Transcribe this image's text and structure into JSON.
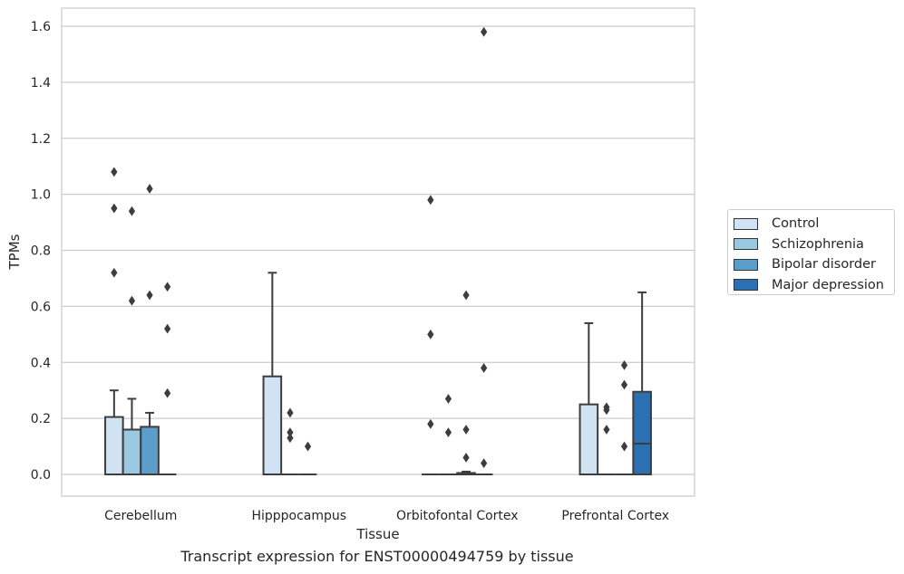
{
  "chart_data": {
    "type": "box",
    "xlabel": "Tissue",
    "ylabel": "TPMs",
    "caption": "Transcript expression for ENST00000494759 by tissue",
    "categories": [
      "Cerebellum",
      "Hipppocampus",
      "Orbitofontal Cortex",
      "Prefrontal Cortex"
    ],
    "ylim": [
      -0.08,
      1.66
    ],
    "yticks": [
      "0.0",
      "0.2",
      "0.4",
      "0.6",
      "0.8",
      "1.0",
      "1.2",
      "1.4",
      "1.6"
    ],
    "grid": "horizontal",
    "legend_position": "right",
    "series": [
      {
        "name": "Control",
        "color": "#d1e2f2",
        "boxes": [
          {
            "q1": 0,
            "median": 0,
            "q3": 0.205,
            "whisker_low": 0,
            "whisker_high": 0.3,
            "outliers": [
              1.08,
              0.95,
              0.72
            ]
          },
          {
            "q1": 0,
            "median": 0,
            "q3": 0.35,
            "whisker_low": 0,
            "whisker_high": 0.72,
            "outliers": []
          },
          {
            "q1": 0,
            "median": 0,
            "q3": 0,
            "whisker_low": 0,
            "whisker_high": 0,
            "outliers": [
              0.98,
              0.5,
              0.18
            ]
          },
          {
            "q1": 0,
            "median": 0,
            "q3": 0.25,
            "whisker_low": 0,
            "whisker_high": 0.54,
            "outliers": []
          }
        ]
      },
      {
        "name": "Schizophrenia",
        "color": "#9ac8e0",
        "boxes": [
          {
            "q1": 0,
            "median": 0,
            "q3": 0.16,
            "whisker_low": 0,
            "whisker_high": 0.27,
            "outliers": [
              0.94,
              0.62
            ]
          },
          {
            "q1": 0,
            "median": 0,
            "q3": 0,
            "whisker_low": 0,
            "whisker_high": 0,
            "outliers": [
              0.22,
              0.15,
              0.13
            ]
          },
          {
            "q1": 0,
            "median": 0,
            "q3": 0,
            "whisker_low": 0,
            "whisker_high": 0,
            "outliers": [
              0.27,
              0.15
            ]
          },
          {
            "q1": 0,
            "median": 0,
            "q3": 0,
            "whisker_low": 0,
            "whisker_high": 0,
            "outliers": [
              0.24,
              0.23,
              0.16
            ]
          }
        ]
      },
      {
        "name": "Bipolar disorder",
        "color": "#5a9ec9",
        "boxes": [
          {
            "q1": 0,
            "median": 0,
            "q3": 0.17,
            "whisker_low": 0,
            "whisker_high": 0.22,
            "outliers": [
              1.02,
              0.64
            ]
          },
          {
            "q1": 0,
            "median": 0,
            "q3": 0,
            "whisker_low": 0,
            "whisker_high": 0,
            "outliers": [
              0.1
            ]
          },
          {
            "q1": 0,
            "median": 0,
            "q3": 0.005,
            "whisker_low": 0,
            "whisker_high": 0.01,
            "outliers": [
              0.64,
              0.16,
              0.06
            ]
          },
          {
            "q1": 0,
            "median": 0,
            "q3": 0,
            "whisker_low": 0,
            "whisker_high": 0,
            "outliers": [
              0.39,
              0.32,
              0.1
            ]
          }
        ]
      },
      {
        "name": "Major depression",
        "color": "#2b70b0",
        "boxes": [
          {
            "q1": 0,
            "median": 0,
            "q3": 0,
            "whisker_low": 0,
            "whisker_high": 0,
            "outliers": [
              0.67,
              0.52,
              0.29
            ]
          },
          null,
          {
            "q1": 0,
            "median": 0,
            "q3": 0,
            "whisker_low": 0,
            "whisker_high": 0,
            "outliers": [
              1.58,
              0.38,
              0.04
            ]
          },
          {
            "q1": 0,
            "median": 0.11,
            "q3": 0.295,
            "whisker_low": 0,
            "whisker_high": 0.65,
            "outliers": []
          }
        ]
      }
    ]
  }
}
